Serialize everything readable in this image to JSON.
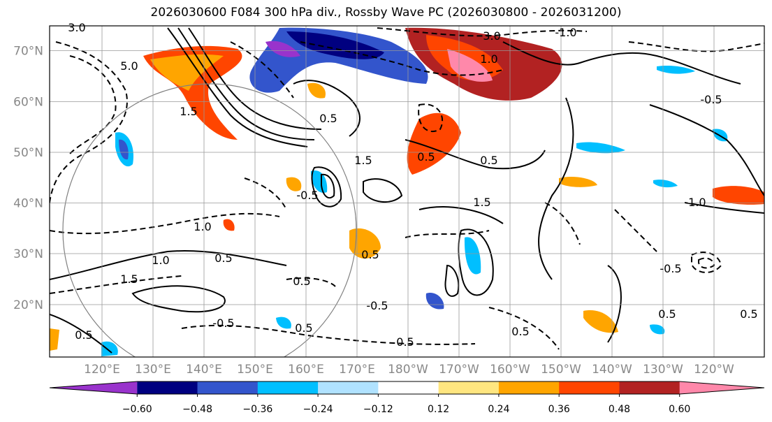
{
  "title": "2026030600 F084 300 hPa div., Rossby Wave PC (2026030800 - 2026031200)",
  "lat_labels": [
    "70°N",
    "60°N",
    "50°N",
    "40°N",
    "30°N",
    "20°N"
  ],
  "lon_labels": [
    "120°E",
    "130°E",
    "140°E",
    "150°E",
    "160°E",
    "170°E",
    "180°W",
    "170°W",
    "160°W",
    "150°W",
    "140°W",
    "130°W",
    "120°W"
  ],
  "colorbar": {
    "colors": [
      "#9933cc",
      "#000080",
      "#3355cc",
      "#00bfff",
      "#b0e2ff",
      "#ffffff",
      "#ffe680",
      "#ffa500",
      "#ff4500",
      "#b22222",
      "#ff88aa"
    ],
    "tick_labels": [
      "−0.60",
      "−0.48",
      "−0.36",
      "−0.24",
      "−0.12",
      "0.12",
      "0.24",
      "0.36",
      "0.48",
      "0.60"
    ]
  },
  "contour_labels": [
    "3.0",
    "3.0",
    "-1.0",
    "5.0",
    "0.5",
    "1.5",
    "0.5",
    "0.5",
    "1.5",
    "1.0",
    "1.0",
    "0.5",
    "1.5",
    "-0.5",
    "-0.5",
    "0.5",
    "0.5",
    "0.5",
    "1.5",
    "0.5",
    "-0.5",
    "-1.0",
    "0.5",
    "0.5",
    "0.5",
    "-0.5",
    "0.5",
    "1.0",
    "-0.5"
  ]
}
